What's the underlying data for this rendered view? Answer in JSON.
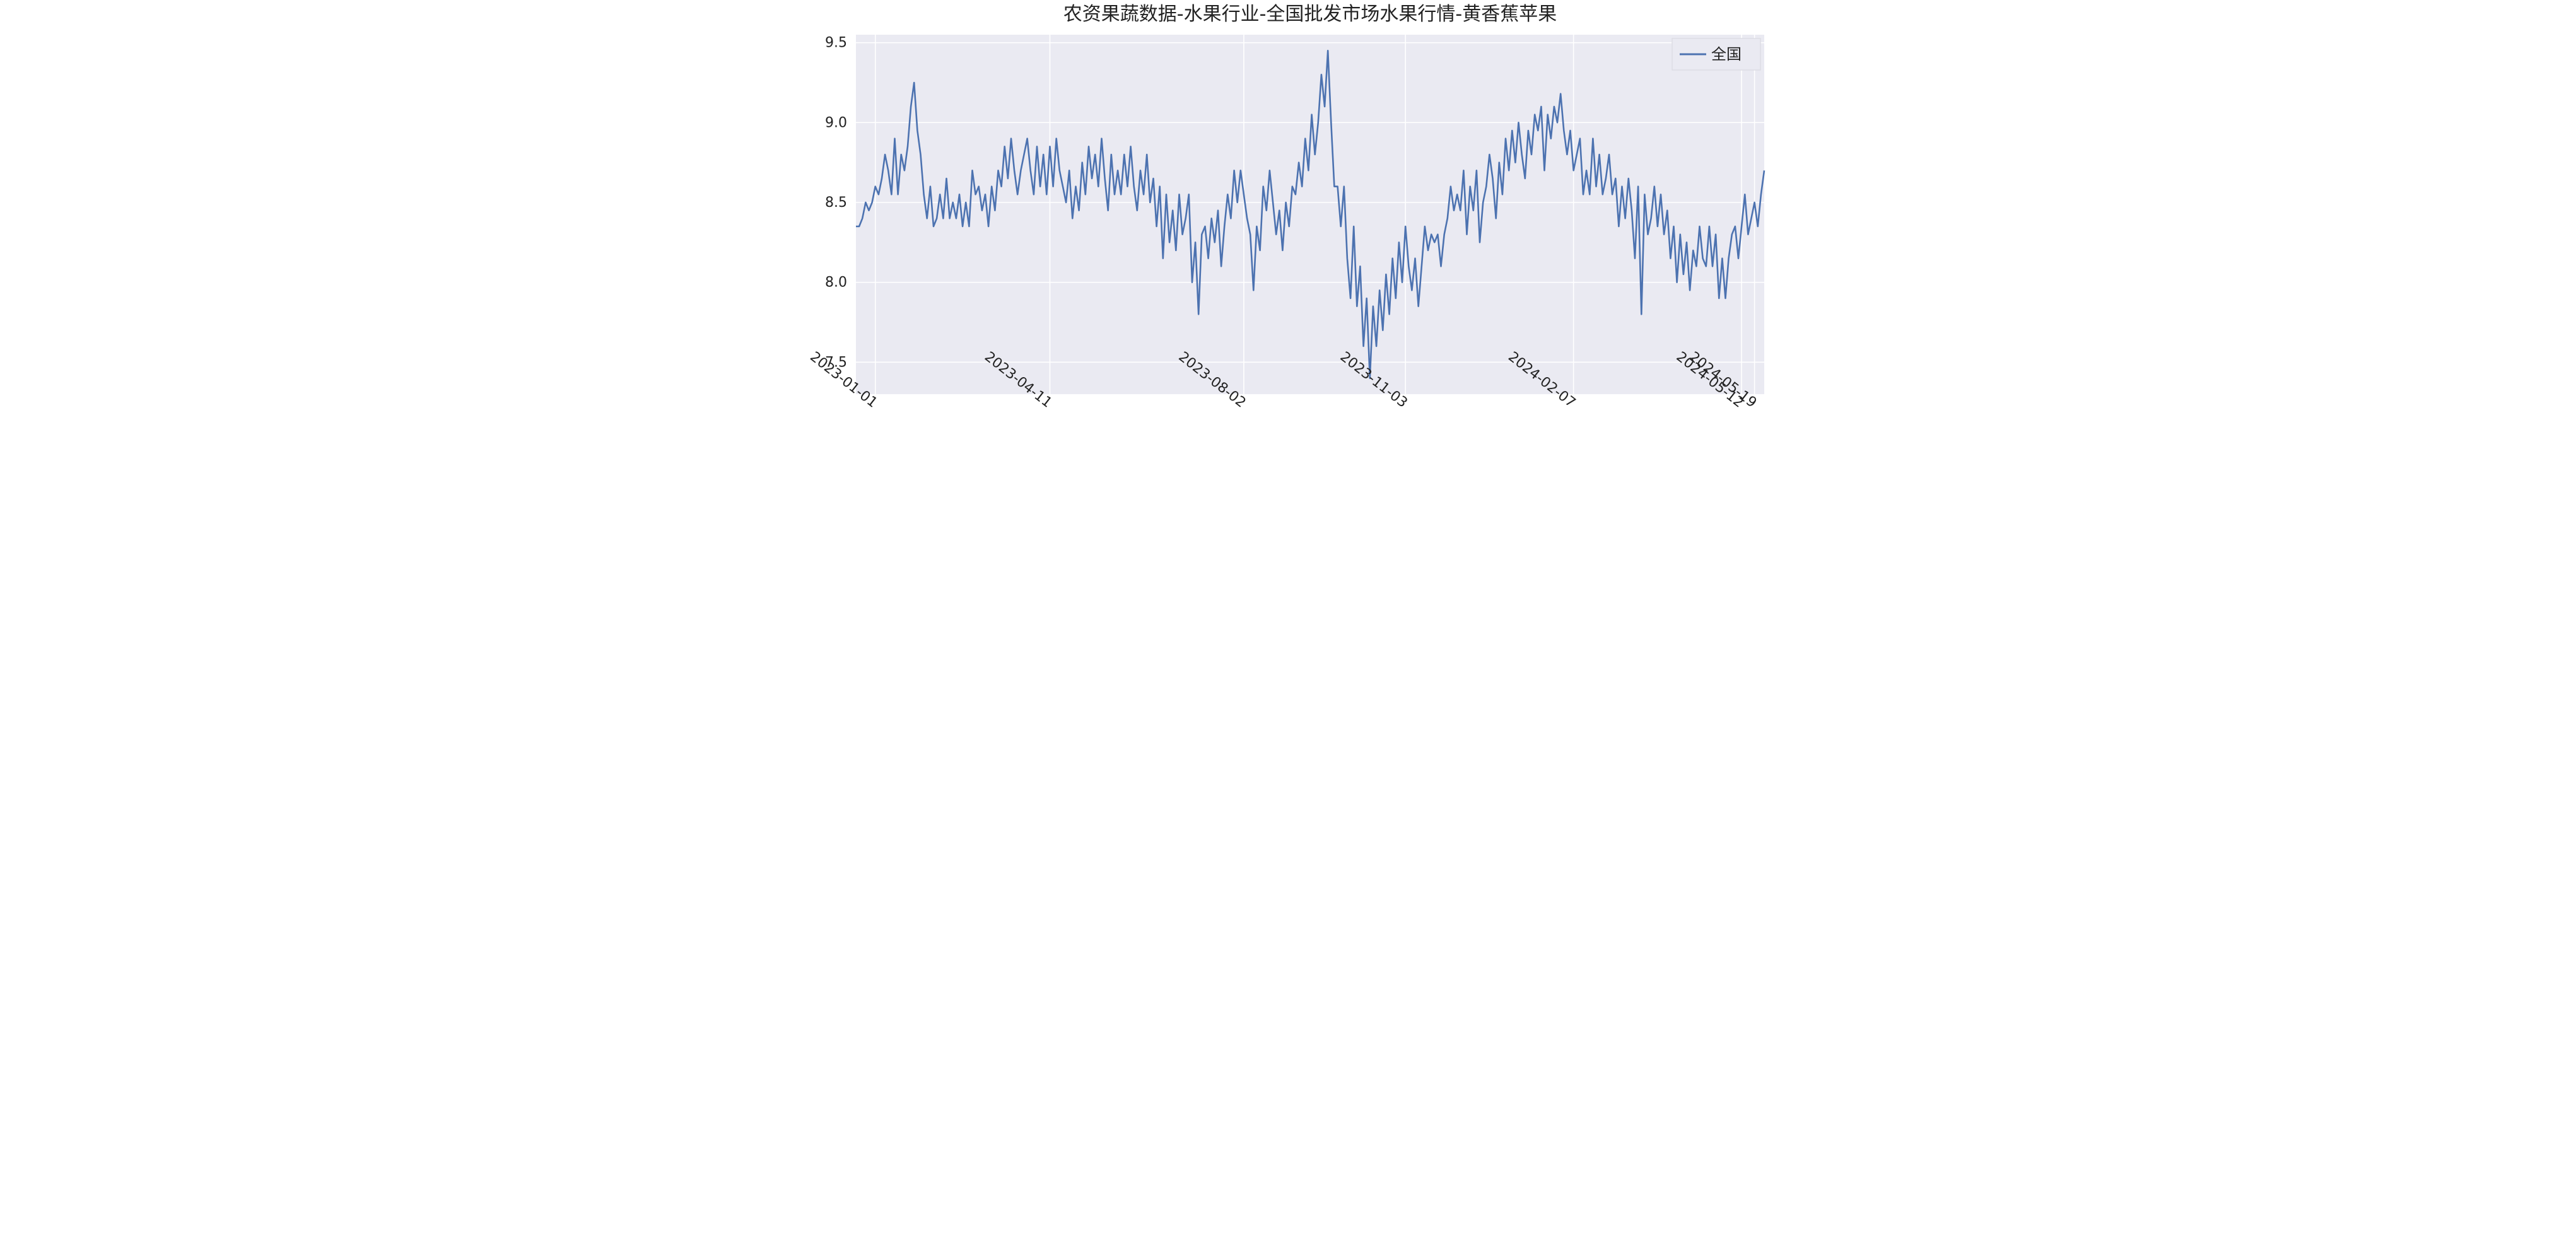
{
  "chart": {
    "type": "line",
    "title": "农资果蔬数据-水果行业-全国批发市场水果行情-黄香蕉苹果",
    "title_fontsize": 30,
    "background_color": "#ffffff",
    "plot_background_color": "#eaeaf2",
    "grid_color": "#ffffff",
    "line_color": "#4c72b0",
    "line_width": 2.6,
    "font_family": "DejaVu Sans, Noto Sans CJK SC, SimHei, sans-serif",
    "label_fontsize": 22,
    "ylim": [
      7.3,
      9.55
    ],
    "yticks": [
      7.5,
      8.0,
      8.5,
      9.0,
      9.5
    ],
    "xtick_labels": [
      "2023-01-01",
      "2023-04-11",
      "2023-08-02",
      "2023-11-03",
      "2024-02-07",
      "2024-05-12",
      "2024-05-19"
    ],
    "xtick_positions": [
      6,
      60,
      120,
      170,
      222,
      274,
      278
    ],
    "n_points": 282,
    "legend": {
      "label": "全国",
      "position": "upper-right",
      "fontsize": 24,
      "line_color": "#4c72b0"
    },
    "values": [
      8.35,
      8.35,
      8.4,
      8.5,
      8.45,
      8.5,
      8.6,
      8.55,
      8.65,
      8.8,
      8.7,
      8.55,
      8.9,
      8.55,
      8.8,
      8.7,
      8.85,
      9.1,
      9.25,
      8.95,
      8.8,
      8.55,
      8.4,
      8.6,
      8.35,
      8.4,
      8.55,
      8.4,
      8.65,
      8.4,
      8.5,
      8.4,
      8.55,
      8.35,
      8.5,
      8.35,
      8.7,
      8.55,
      8.6,
      8.45,
      8.55,
      8.35,
      8.6,
      8.45,
      8.7,
      8.6,
      8.85,
      8.65,
      8.9,
      8.7,
      8.55,
      8.7,
      8.8,
      8.9,
      8.7,
      8.55,
      8.85,
      8.6,
      8.8,
      8.55,
      8.85,
      8.6,
      8.9,
      8.7,
      8.6,
      8.5,
      8.7,
      8.4,
      8.6,
      8.45,
      8.75,
      8.55,
      8.85,
      8.65,
      8.8,
      8.6,
      8.9,
      8.65,
      8.45,
      8.8,
      8.55,
      8.7,
      8.55,
      8.8,
      8.6,
      8.85,
      8.6,
      8.45,
      8.7,
      8.55,
      8.8,
      8.5,
      8.65,
      8.35,
      8.6,
      8.15,
      8.55,
      8.25,
      8.45,
      8.2,
      8.55,
      8.3,
      8.4,
      8.55,
      8.0,
      8.25,
      7.8,
      8.3,
      8.35,
      8.15,
      8.4,
      8.25,
      8.45,
      8.1,
      8.35,
      8.55,
      8.4,
      8.7,
      8.5,
      8.7,
      8.55,
      8.4,
      8.3,
      7.95,
      8.35,
      8.2,
      8.6,
      8.45,
      8.7,
      8.5,
      8.3,
      8.45,
      8.2,
      8.5,
      8.35,
      8.6,
      8.55,
      8.75,
      8.6,
      8.9,
      8.7,
      9.05,
      8.8,
      9.0,
      9.3,
      9.1,
      9.45,
      9.0,
      8.6,
      8.6,
      8.35,
      8.6,
      8.15,
      7.9,
      8.35,
      7.85,
      8.1,
      7.6,
      7.9,
      7.4,
      7.85,
      7.6,
      7.95,
      7.7,
      8.05,
      7.8,
      8.15,
      7.9,
      8.25,
      8.0,
      8.35,
      8.1,
      7.95,
      8.15,
      7.85,
      8.1,
      8.35,
      8.2,
      8.3,
      8.25,
      8.3,
      8.1,
      8.3,
      8.4,
      8.6,
      8.45,
      8.55,
      8.45,
      8.7,
      8.3,
      8.6,
      8.45,
      8.7,
      8.25,
      8.5,
      8.6,
      8.8,
      8.65,
      8.4,
      8.75,
      8.55,
      8.9,
      8.7,
      8.95,
      8.75,
      9.0,
      8.8,
      8.65,
      8.95,
      8.8,
      9.05,
      8.95,
      9.1,
      8.7,
      9.05,
      8.9,
      9.1,
      9.0,
      9.18,
      8.95,
      8.8,
      8.95,
      8.7,
      8.8,
      8.9,
      8.55,
      8.7,
      8.55,
      8.9,
      8.6,
      8.8,
      8.55,
      8.65,
      8.8,
      8.55,
      8.65,
      8.35,
      8.6,
      8.4,
      8.65,
      8.45,
      8.15,
      8.6,
      7.8,
      8.55,
      8.3,
      8.4,
      8.6,
      8.35,
      8.55,
      8.3,
      8.45,
      8.15,
      8.35,
      8.0,
      8.3,
      8.05,
      8.25,
      7.95,
      8.2,
      8.1,
      8.35,
      8.15,
      8.1,
      8.35,
      8.1,
      8.3,
      7.9,
      8.15,
      7.9,
      8.15,
      8.3,
      8.35,
      8.15,
      8.35,
      8.55,
      8.3,
      8.4,
      8.5,
      8.35,
      8.55,
      8.7
    ]
  }
}
